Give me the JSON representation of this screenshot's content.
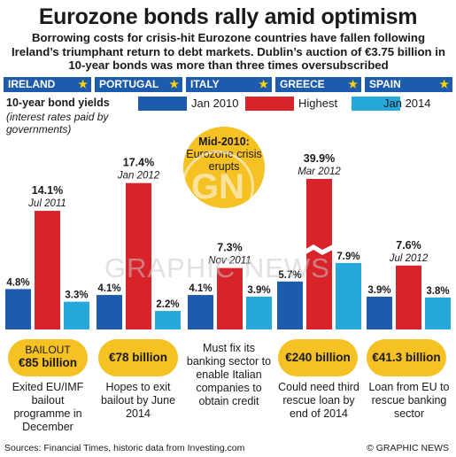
{
  "headline": "Eurozone bonds rally amid optimism",
  "subhead": "Borrowing costs for crisis-hit Eurozone countries have fallen following Ireland’s triumphant return to debt markets. Dublin’s auction of €3.75 billion in 10-year bonds was more than three times oversubscribed",
  "legend": {
    "title": "10-year bond yields",
    "note": "(interest rates paid by governments)",
    "items": [
      {
        "label": "Jan 2010",
        "color": "#1d5cad"
      },
      {
        "label": "Highest",
        "color": "#d8232a"
      },
      {
        "label": "Jan 2014",
        "color": "#26a8dc"
      }
    ]
  },
  "note_circle": {
    "title": "Mid-2010:",
    "text": "Eurozone crisis erupts",
    "color": "#f5c123"
  },
  "chart_data": {
    "type": "bar",
    "categories": [
      "IRELAND",
      "PORTUGAL",
      "ITALY",
      "GREECE",
      "SPAIN"
    ],
    "series": [
      {
        "name": "Jan 2010",
        "values": [
          4.8,
          4.1,
          4.1,
          5.7,
          3.9
        ],
        "labels": [
          "4.8%",
          "4.1%",
          "4.1%",
          "5.7%",
          "3.9%"
        ]
      },
      {
        "name": "Highest",
        "values": [
          14.1,
          17.4,
          7.3,
          39.9,
          7.6
        ],
        "labels": [
          "14.1%",
          "17.4%",
          "7.3%",
          "39.9%",
          "7.6%"
        ],
        "dates": [
          "Jul 2011",
          "Jan 2012",
          "Nov 2011",
          "Mar 2012",
          "Jul 2012"
        ]
      },
      {
        "name": "Jan 2014",
        "values": [
          3.3,
          2.2,
          3.9,
          7.9,
          3.8
        ],
        "labels": [
          "3.3%",
          "2.2%",
          "3.9%",
          "7.9%",
          "3.8%"
        ]
      }
    ],
    "axis_break": "GREECE Highest bar is broken (truncated)",
    "colors": {
      "Jan 2010": "#1d5cad",
      "Highest": "#d8232a",
      "Jan 2014": "#26a8dc"
    },
    "country_bar_color": "#1d5cad",
    "flag_star_color": "#ffd400"
  },
  "bailouts": [
    {
      "country": "IRELAND",
      "prefix": "BAILOUT",
      "amount": "€85 billion",
      "desc": "Exited EU/IMF bailout programme in December"
    },
    {
      "country": "PORTUGAL",
      "prefix": "",
      "amount": "€78 billion",
      "desc": "Hopes to exit bailout by June 2014"
    },
    {
      "country": "ITALY",
      "prefix": "",
      "amount": "",
      "desc": "Must fix its banking sector to enable Italian companies to obtain credit"
    },
    {
      "country": "GREECE",
      "prefix": "",
      "amount": "€240 billion",
      "desc": "Could need third rescue loan by end of 2014"
    },
    {
      "country": "SPAIN",
      "prefix": "",
      "amount": "€41.3 billion",
      "desc": "Loan from EU to rescue banking sector"
    }
  ],
  "watermark": {
    "logo": "GN",
    "text": "GRAPHIC NEWS"
  },
  "footer": {
    "sources": "Sources: Financial Times, historic data from Investing.com",
    "credit": "© GRAPHIC NEWS"
  }
}
